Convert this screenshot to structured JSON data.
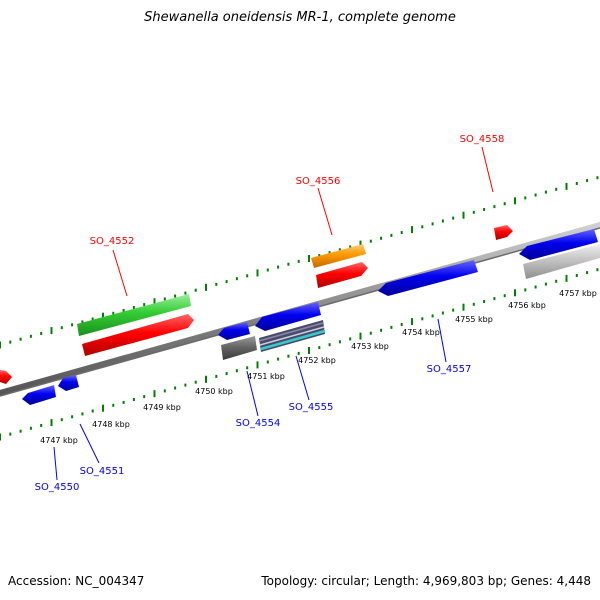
{
  "title": "Shewanella oneidensis MR-1, complete genome",
  "footer": {
    "accession": "Accession: NC_004347",
    "summary": "Topology: circular; Length: 4,969,803 bp; Genes: 4,448"
  },
  "colors": {
    "forward_gene": "#ff0000",
    "reverse_gene": "#0000ff",
    "backbone": "#808080",
    "ticks": "#008000",
    "green_track": "#33cc33",
    "orange_track": "#ff9900",
    "gray_track": "#666666",
    "light_gray_track": "#bbbbbb",
    "cyan_track": "#33cccc"
  },
  "scale_labels": [
    "4747 kbp",
    "4748 kbp",
    "4749 kbp",
    "4750 kbp",
    "4751 kbp",
    "4752 kbp",
    "4753 kbp",
    "4754 kbp",
    "4755 kbp",
    "4756 kbp",
    "4757 kbp"
  ],
  "gene_labels": {
    "forward": [
      "SO_4552",
      "SO_4556",
      "SO_4558"
    ],
    "reverse": [
      "SO_4550",
      "SO_4551",
      "SO_4554",
      "SO_4555",
      "SO_4557"
    ]
  }
}
